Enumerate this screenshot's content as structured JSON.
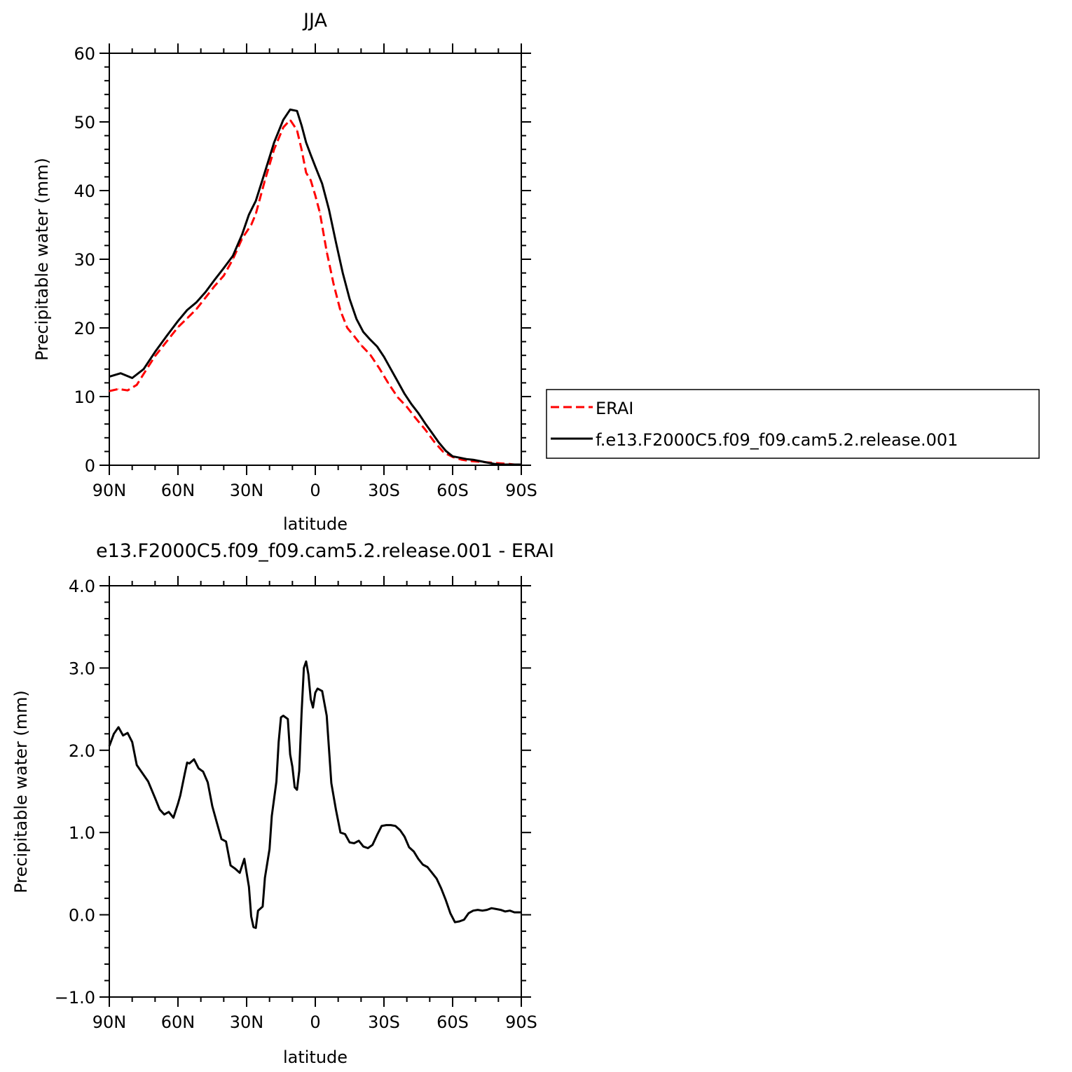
{
  "chart_data": [
    {
      "type": "line",
      "title": "JJA",
      "xlabel": "latitude",
      "ylabel": "Precipitable water (mm)",
      "xlim": [
        90,
        -90
      ],
      "ylim": [
        0,
        60
      ],
      "xticks": [
        90,
        60,
        30,
        0,
        -30,
        -60,
        -90
      ],
      "xtick_labels": [
        "90N",
        "60N",
        "30N",
        "0",
        "30S",
        "60S",
        "90S"
      ],
      "yticks": [
        0,
        10,
        20,
        30,
        40,
        50,
        60
      ],
      "ytick_labels": [
        "0",
        "10",
        "20",
        "30",
        "40",
        "50",
        "60"
      ],
      "grid": false,
      "legend_position": "right",
      "series": [
        {
          "name": "ERAI",
          "color": "#ff0000",
          "dash": true,
          "x": [
            90,
            86,
            82,
            78,
            75,
            70,
            65,
            60,
            56,
            52,
            48,
            44,
            40,
            36,
            32,
            28,
            26,
            22,
            18,
            14,
            11,
            8,
            6,
            4,
            2,
            0,
            -2,
            -5,
            -8,
            -11,
            -14,
            -17,
            -20,
            -24,
            -28,
            -32,
            -36,
            -40,
            -44,
            -48,
            -52,
            -56,
            -60,
            -64,
            -68,
            -72,
            -76,
            -80,
            -84,
            -87,
            -90
          ],
          "y": [
            10.8,
            11.1,
            10.9,
            11.7,
            13.3,
            15.9,
            18.0,
            20.1,
            21.4,
            22.7,
            24.4,
            26.1,
            27.6,
            30.0,
            33.0,
            35.0,
            36.6,
            41.5,
            46.0,
            49.2,
            50.3,
            48.8,
            46.0,
            42.6,
            41.5,
            39.3,
            36.8,
            31.1,
            26.4,
            22.5,
            20.0,
            18.8,
            17.5,
            16.1,
            14.1,
            11.9,
            9.9,
            8.5,
            6.8,
            5.2,
            3.4,
            1.9,
            1.2,
            0.8,
            0.6,
            0.5,
            0.4,
            0.3,
            0.2,
            0.1,
            0.1
          ]
        },
        {
          "name": "f.e13.F2000C5.f09_f09.cam5.2.release.001",
          "color": "#000000",
          "dash": false,
          "x": [
            90,
            85,
            80,
            75,
            70,
            65,
            60,
            56,
            52,
            48,
            44,
            40,
            36,
            32,
            29,
            26,
            22,
            18,
            14,
            11,
            8,
            6,
            4,
            2,
            0,
            -3,
            -6,
            -9,
            -12,
            -15,
            -18,
            -21,
            -24,
            -27,
            -30,
            -33,
            -36,
            -39,
            -42,
            -45,
            -48,
            -51,
            -54,
            -57,
            -60,
            -63,
            -66,
            -69,
            -72,
            -75,
            -78,
            -81,
            -84,
            -87,
            -90
          ],
          "y": [
            12.9,
            13.4,
            12.7,
            14.0,
            16.5,
            18.8,
            21.0,
            22.6,
            23.7,
            25.2,
            27.0,
            28.7,
            30.5,
            33.6,
            36.5,
            38.5,
            42.7,
            47.0,
            50.3,
            51.8,
            51.6,
            49.5,
            47.0,
            45.2,
            43.5,
            41.0,
            37.2,
            32.5,
            28.0,
            24.2,
            21.3,
            19.4,
            18.3,
            17.3,
            15.8,
            14.0,
            12.2,
            10.4,
            8.9,
            7.6,
            6.1,
            4.7,
            3.3,
            2.1,
            1.3,
            1.1,
            0.9,
            0.8,
            0.6,
            0.4,
            0.2,
            0.1,
            0.1,
            0.1,
            0.1
          ]
        }
      ]
    },
    {
      "type": "line",
      "title": "e13.F2000C5.f09_f09.cam5.2.release.001 - ERAI",
      "xlabel": "latitude",
      "ylabel": "Precipitable water (mm)",
      "xlim": [
        90,
        -90
      ],
      "ylim": [
        -1.0,
        4.0
      ],
      "xticks": [
        90,
        60,
        30,
        0,
        -30,
        -60,
        -90
      ],
      "xtick_labels": [
        "90N",
        "60N",
        "30N",
        "0",
        "30S",
        "60S",
        "90S"
      ],
      "yticks": [
        -1.0,
        0.0,
        1.0,
        2.0,
        3.0,
        4.0
      ],
      "ytick_labels": [
        "−1.0",
        "0.0",
        "1.0",
        "2.0",
        "3.0",
        "4.0"
      ],
      "grid": false,
      "series": [
        {
          "color": "#000000",
          "x": [
            90,
            88,
            86,
            84,
            82,
            80,
            78,
            75,
            73,
            70,
            68,
            66,
            64,
            62,
            60,
            59,
            57,
            56,
            55,
            53,
            51,
            49,
            47,
            45,
            43,
            41,
            39,
            37,
            35,
            33,
            31,
            29,
            28,
            27,
            26,
            25,
            23,
            22,
            20,
            19,
            17,
            16,
            15,
            14,
            12,
            11,
            10,
            9,
            8,
            7,
            6,
            5,
            4,
            3,
            2,
            1,
            0,
            -1,
            -3,
            -5,
            -7,
            -9,
            -11,
            -13,
            -15,
            -17,
            -19,
            -21,
            -23,
            -25,
            -27,
            -29,
            -31,
            -33,
            -35,
            -37,
            -39,
            -41,
            -43,
            -45,
            -47,
            -49,
            -51,
            -53,
            -55,
            -57,
            -59,
            -61,
            -63,
            -65,
            -67,
            -69,
            -71,
            -73,
            -75,
            -77,
            -79,
            -81,
            -83,
            -85,
            -87,
            -90
          ],
          "y": [
            2.05,
            2.2,
            2.28,
            2.18,
            2.21,
            2.1,
            1.82,
            1.7,
            1.62,
            1.42,
            1.28,
            1.22,
            1.25,
            1.18,
            1.35,
            1.45,
            1.72,
            1.85,
            1.84,
            1.89,
            1.78,
            1.74,
            1.61,
            1.32,
            1.12,
            0.92,
            0.89,
            0.6,
            0.56,
            0.51,
            0.68,
            0.34,
            -0.02,
            -0.15,
            -0.16,
            0.05,
            0.1,
            0.45,
            0.8,
            1.2,
            1.62,
            2.1,
            2.4,
            2.42,
            2.38,
            1.95,
            1.8,
            1.55,
            1.52,
            1.75,
            2.45,
            3.0,
            3.08,
            2.92,
            2.62,
            2.52,
            2.7,
            2.75,
            2.72,
            2.42,
            1.6,
            1.28,
            1.0,
            0.98,
            0.88,
            0.87,
            0.9,
            0.83,
            0.81,
            0.85,
            0.97,
            1.08,
            1.09,
            1.09,
            1.08,
            1.03,
            0.95,
            0.82,
            0.77,
            0.68,
            0.61,
            0.58,
            0.51,
            0.44,
            0.32,
            0.18,
            0.02,
            -0.09,
            -0.08,
            -0.06,
            0.02,
            0.05,
            0.06,
            0.05,
            0.06,
            0.08,
            0.07,
            0.06,
            0.04,
            0.05,
            0.03,
            0.03
          ]
        }
      ]
    }
  ]
}
